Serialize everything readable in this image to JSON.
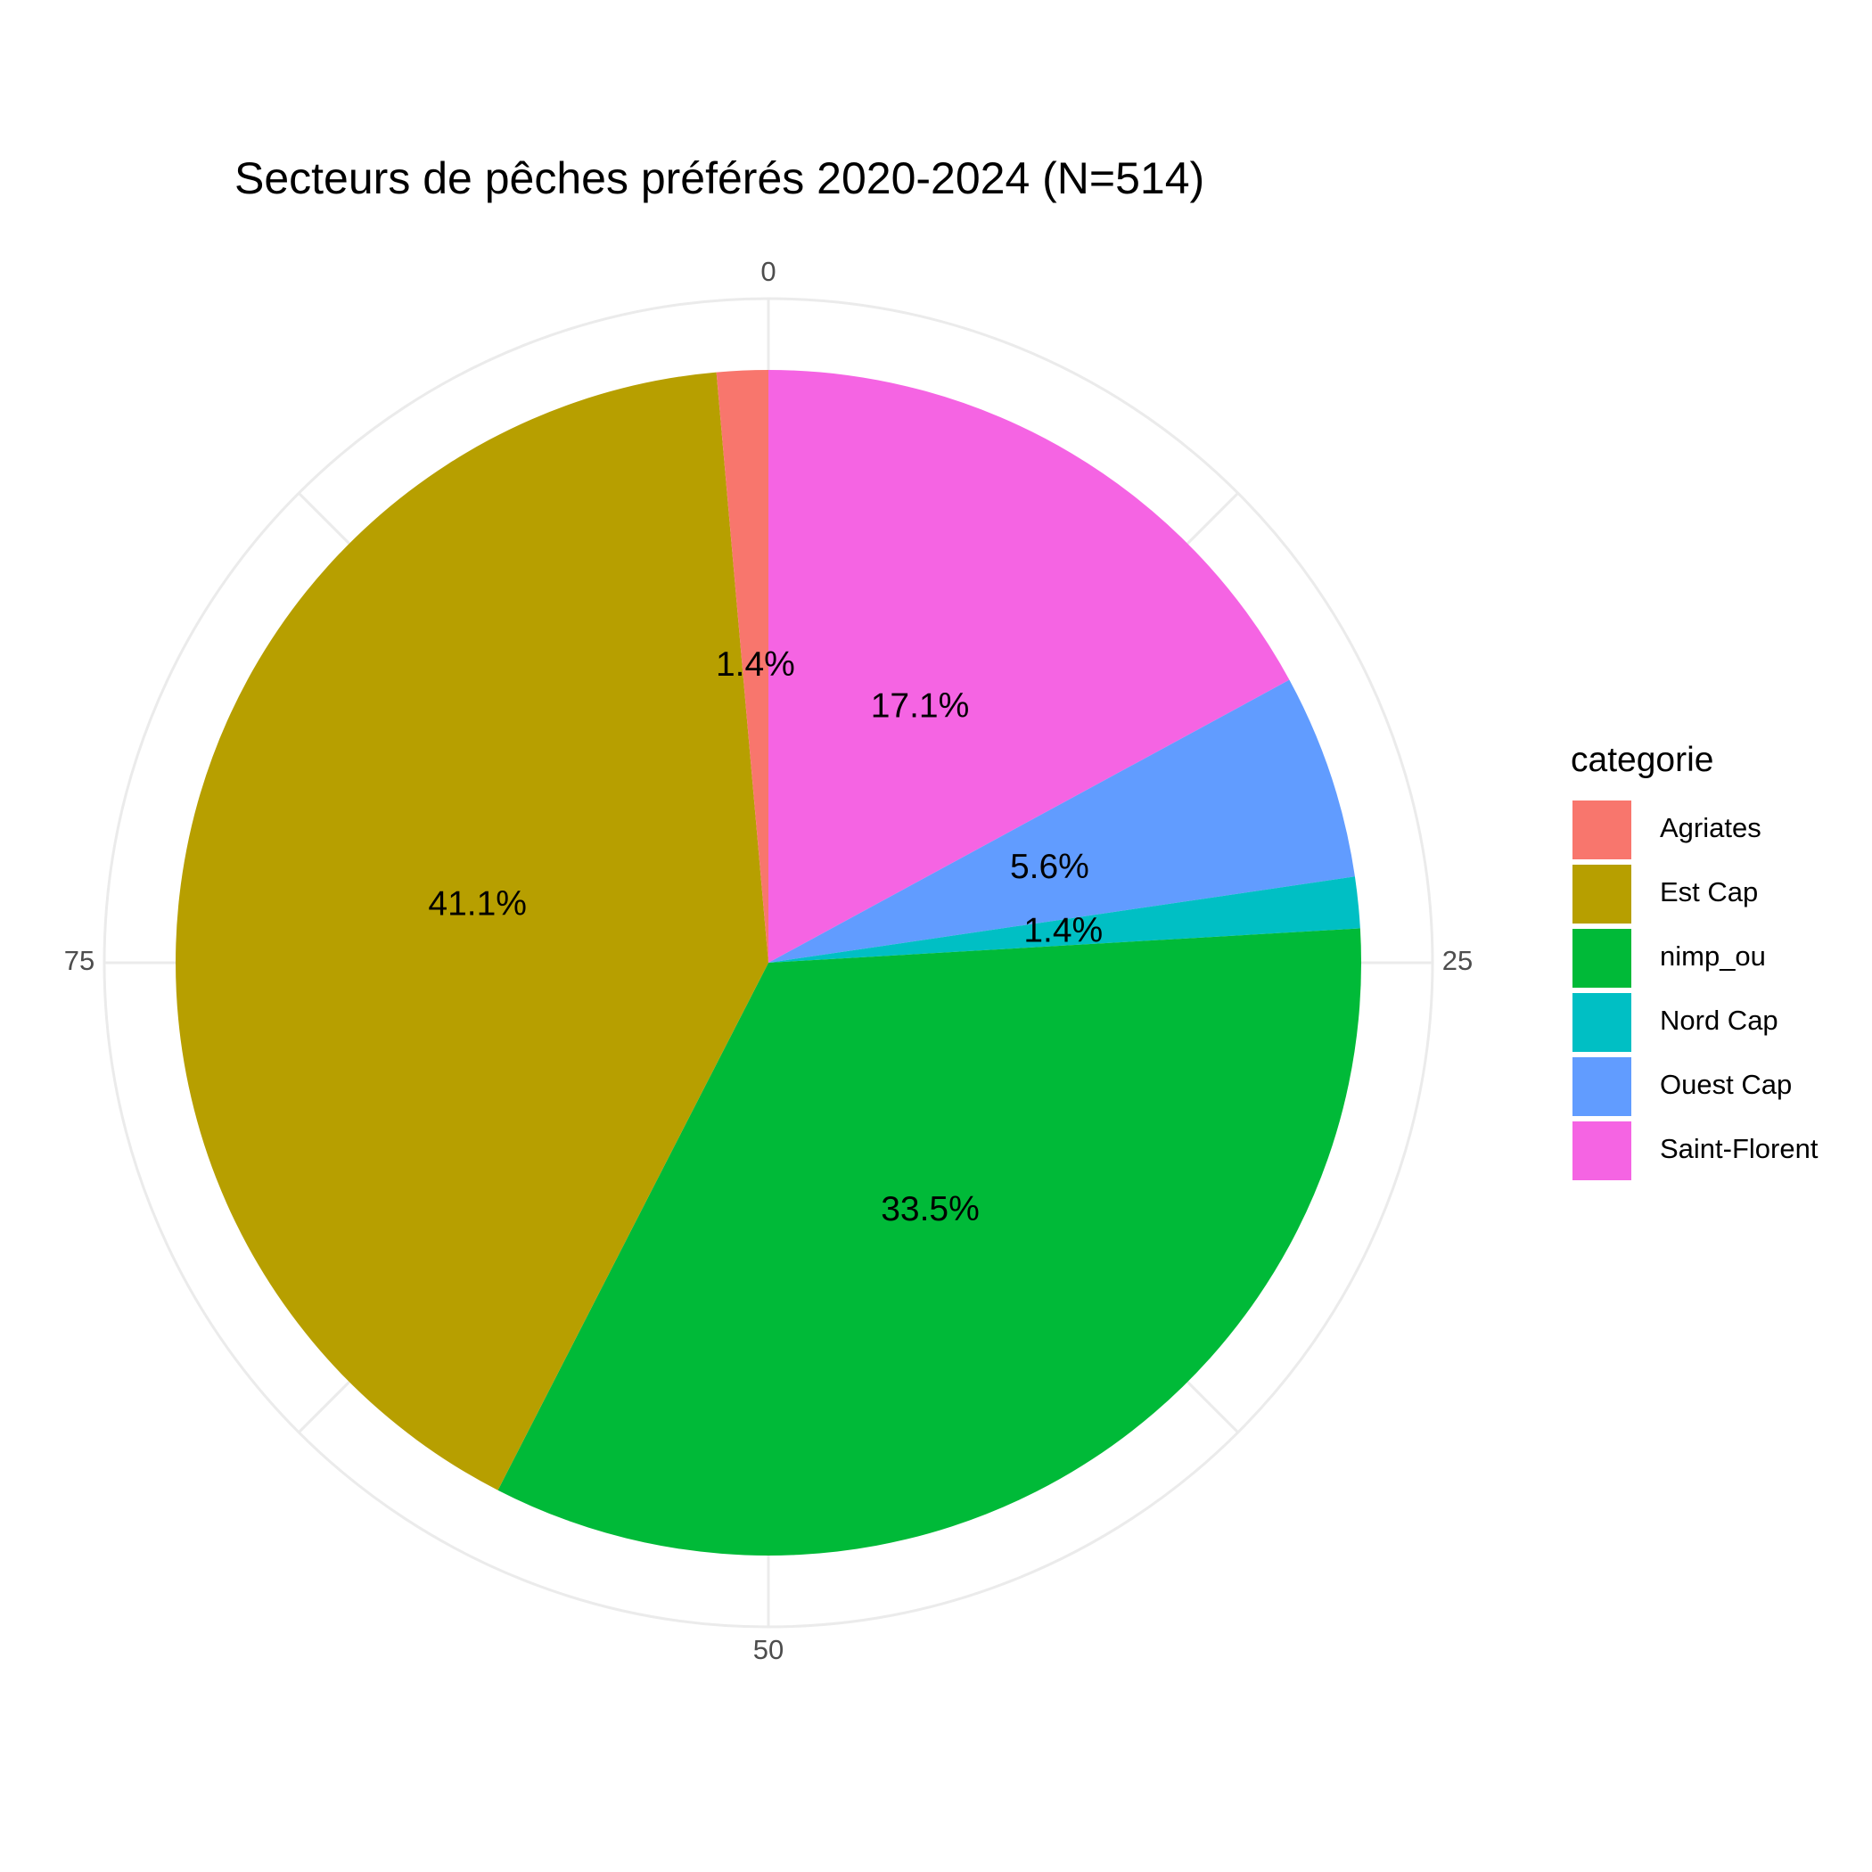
{
  "chart_data": {
    "type": "pie",
    "title": "Secteurs de pêches préférés 2020-2024 (N=514)",
    "theta_ticks": [
      "0",
      "25",
      "50",
      "75"
    ],
    "theta_tick_values": [
      0,
      25,
      50,
      75
    ],
    "theta_max": 100,
    "grid": true,
    "legend": {
      "title": "categorie",
      "placement": "right",
      "entries": [
        "Agriates",
        "Est Cap",
        "nimp_ou",
        "Nord Cap",
        "Ouest Cap",
        "Saint-Florent"
      ]
    },
    "slices": [
      {
        "category": "Saint-Florent",
        "value": 17.1,
        "label": "17.1%",
        "color": "#F564E3"
      },
      {
        "category": "Ouest Cap",
        "value": 5.6,
        "label": "5.6%",
        "color": "#619CFF"
      },
      {
        "category": "Nord Cap",
        "value": 1.4,
        "label": "1.4%",
        "color": "#00BFC4"
      },
      {
        "category": "nimp_ou",
        "value": 33.5,
        "label": "33.5%",
        "color": "#00BA38"
      },
      {
        "category": "Est Cap",
        "value": 41.1,
        "label": "41.1%",
        "color": "#B79F00"
      },
      {
        "category": "Agriates",
        "value": 1.4,
        "label": "1.4%",
        "color": "#F8766D"
      }
    ]
  }
}
